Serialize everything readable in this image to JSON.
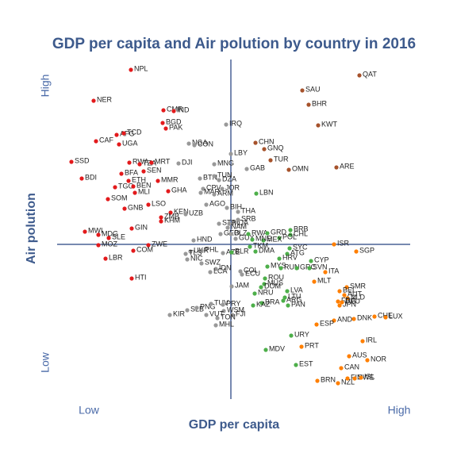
{
  "chart_data": {
    "type": "scatter",
    "title": "GDP per capita and Air polution by country in 2016",
    "x_label": "GDP per capita",
    "y_label": "Air polution",
    "xlim": [
      72,
      517
    ],
    "ylim": [
      73,
      501
    ],
    "xticks": [
      {
        "value": 112,
        "label": "Low"
      },
      {
        "value": 503,
        "label": "High"
      }
    ],
    "yticks": [
      {
        "value": 119,
        "label": "Low"
      },
      {
        "value": 468,
        "label": "High"
      }
    ],
    "crosshair": {
      "x": 291,
      "y": 268,
      "color": "#4a6296"
    },
    "grid": false,
    "series": [
      {
        "color": "#e31a1c",
        "labels": [
          "NPL",
          "NER",
          "CMR",
          "IND",
          "BGD",
          "PAK",
          "AFG",
          "TCD",
          "CAF",
          "UGA",
          "SSD",
          "RWA",
          "TZA",
          "MRT",
          "BDI",
          "BFA",
          "SEN",
          "ETH",
          "MMR",
          "TGO",
          "BEN",
          "MLI",
          "GHA",
          "SOM",
          "GNB",
          "LSO",
          "KEN",
          "ZMB",
          "KHM",
          "MWI",
          "MDG",
          "SLE",
          "GIN",
          "MOZ",
          "ZWE",
          "COM",
          "LBR",
          "HTI"
        ],
        "x": [
          165,
          118,
          206,
          219,
          205,
          209,
          147,
          156,
          121,
          150,
          90,
          163,
          176,
          191,
          103,
          153,
          181,
          162,
          199,
          145,
          168,
          170,
          212,
          136,
          157,
          187,
          215,
          203,
          203,
          107,
          124,
          137,
          166,
          124,
          187,
          168,
          133,
          166
        ],
        "values": [
          488,
          449,
          437,
          436,
          421,
          414,
          406,
          408,
          398,
          394,
          372,
          371,
          369,
          371,
          351,
          357,
          360,
          348,
          348,
          340,
          341,
          333,
          335,
          325,
          313,
          318,
          308,
          302,
          297,
          284,
          280,
          276,
          288,
          267,
          267,
          260,
          250,
          225
        ]
      },
      {
        "color": "#999999",
        "labels": [
          "IRQ",
          "NGA",
          "CON",
          "DJI",
          "LBY",
          "MNG",
          "GAB",
          "BTN",
          "TUN",
          "DZA",
          "CPV",
          "JOR",
          "MAR",
          "ARM",
          "UZB",
          "AGO",
          "BIH",
          "THA",
          "STP",
          "MDA",
          "SRB",
          "NAM",
          "GEO",
          "BLZ",
          "GUY",
          "HND",
          "UKR",
          "PHL",
          "TLS",
          "NIC",
          "AZE",
          "SWZ",
          "IDN",
          "LCA",
          "COL",
          "ECU",
          "JAM",
          "KIR",
          "SLB",
          "PNG",
          "TUV",
          "PRY",
          "WSM",
          "VUT",
          "FJI",
          "TON",
          "MHL"
        ],
        "x": [
          285,
          238,
          245,
          225,
          291,
          270,
          311,
          252,
          270,
          276,
          256,
          280,
          253,
          270,
          234,
          260,
          286,
          300,
          276,
          289,
          300,
          287,
          278,
          291,
          297,
          244,
          240,
          254,
          234,
          236,
          281,
          254,
          272,
          265,
          303,
          305,
          292,
          214,
          236,
          248,
          266,
          281,
          282,
          260,
          293,
          274,
          272
        ],
        "values": [
          419,
          395,
          393,
          370,
          382,
          369,
          363,
          351,
          354,
          349,
          338,
          338,
          333,
          331,
          306,
          318,
          314,
          309,
          294,
          294,
          299,
          289,
          281,
          281,
          275,
          273,
          259,
          260,
          256,
          249,
          257,
          244,
          237,
          233,
          234,
          230,
          215,
          179,
          185,
          188,
          193,
          192,
          184,
          179,
          179,
          175,
          166
        ]
      },
      {
        "color": "#4daf4a",
        "labels": [
          "LBN",
          "RWA",
          "GRD",
          "BRB",
          "CHL",
          "POL",
          "MEX",
          "MNE",
          "BLR",
          "TKM",
          "DMA",
          "SYC",
          "ATG",
          "HRV",
          "CYP",
          "MYS",
          "RUN",
          "GRC",
          "SVN",
          "ROU",
          "MUS",
          "DOM",
          "LVA",
          "NRU",
          "LTU",
          "ARG",
          "BRA",
          "PAN",
          "KAZ",
          "URY",
          "MDV",
          "EST"
        ],
        "x": [
          323,
          313,
          337,
          366,
          366,
          352,
          332,
          318,
          292,
          315,
          322,
          365,
          362,
          352,
          392,
          337,
          354,
          374,
          390,
          334,
          333,
          329,
          362,
          321,
          359,
          357,
          330,
          363,
          319,
          367,
          335,
          373
        ],
        "values": [
          332,
          281,
          282,
          286,
          280,
          276,
          273,
          274,
          258,
          265,
          259,
          263,
          256,
          250,
          247,
          240,
          238,
          238,
          238,
          225,
          218,
          214,
          209,
          206,
          201,
          197,
          194,
          191,
          191,
          153,
          135,
          116
        ]
      },
      {
        "color": "#ff7f00",
        "labels": [
          "ISR",
          "SGP",
          "ITA",
          "MLT",
          "SMR",
          "BEL",
          "AUT",
          "NLD",
          "FRA",
          "DEU",
          "JPN",
          "AND",
          "ESP",
          "DNK",
          "CHE",
          "LUX",
          "IRL",
          "PRT",
          "AUS",
          "NOR",
          "CAN",
          "BRN",
          "NZL",
          "FIN",
          "SWE",
          "ISL"
        ],
        "x": [
          421,
          449,
          410,
          396,
          437,
          428,
          434,
          438,
          426,
          431,
          428,
          421,
          399,
          446,
          472,
          486,
          457,
          380,
          440,
          463,
          430,
          400,
          426,
          438,
          447,
          455
        ],
        "values": [
          268,
          259,
          233,
          221,
          214,
          209,
          204,
          200,
          196,
          195,
          191,
          172,
          167,
          174,
          177,
          176,
          146,
          139,
          127,
          122,
          112,
          96,
          93,
          99,
          99,
          100
        ]
      },
      {
        "color": "#a6522b",
        "labels": [
          "QAT",
          "SAU",
          "BHR",
          "KWT",
          "CHN",
          "GNQ",
          "TUR",
          "OMN",
          "ARE"
        ],
        "x": [
          453,
          381,
          389,
          401,
          322,
          333,
          341,
          364,
          424
        ],
        "values": [
          481,
          462,
          444,
          418,
          396,
          388,
          374,
          362,
          365
        ]
      }
    ]
  }
}
